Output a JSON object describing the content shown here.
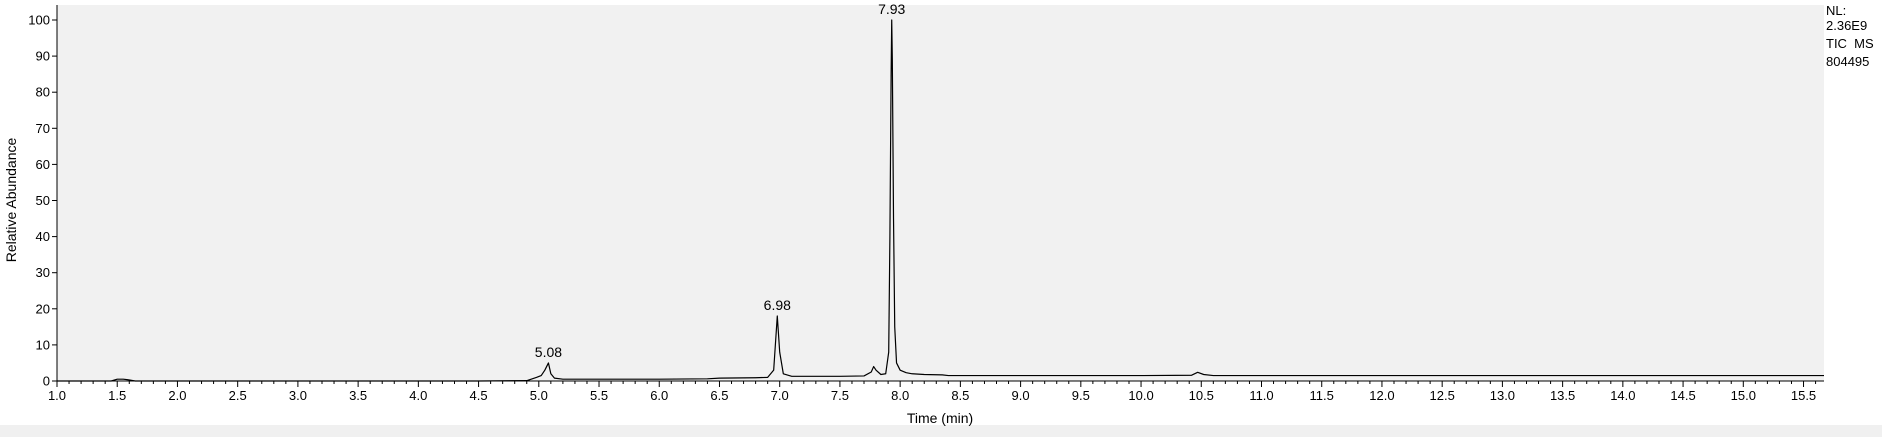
{
  "chart_data": {
    "type": "line",
    "title": "",
    "xlabel": "Time (min)",
    "ylabel": "Relative Abundance",
    "xlim": [
      1.0,
      15.67
    ],
    "ylim": [
      0,
      100
    ],
    "x_ticks": [
      "1.0",
      "1.5",
      "2.0",
      "2.5",
      "3.0",
      "3.5",
      "4.0",
      "4.5",
      "5.0",
      "5.5",
      "6.0",
      "6.5",
      "7.0",
      "7.5",
      "8.0",
      "8.5",
      "9.0",
      "9.5",
      "10.0",
      "10.5",
      "11.0",
      "11.5",
      "12.0",
      "12.5",
      "13.0",
      "13.5",
      "14.0",
      "14.5",
      "15.0",
      "15.5"
    ],
    "y_ticks": [
      "0",
      "10",
      "20",
      "30",
      "40",
      "50",
      "60",
      "70",
      "80",
      "90",
      "100"
    ],
    "grid": false,
    "legend": "none",
    "annotation_lines": [
      "NL:",
      "2.36E9",
      "TIC  MS",
      "804495"
    ],
    "peak_labels": [
      {
        "x": 5.08,
        "y": 5,
        "label": "5.08"
      },
      {
        "x": 6.98,
        "y": 18,
        "label": "6.98"
      },
      {
        "x": 7.93,
        "y": 100,
        "label": "7.93"
      }
    ],
    "series": [
      {
        "color": "#000000",
        "x": [
          1.0,
          1.45,
          1.5,
          1.55,
          1.6,
          1.65,
          2.0,
          3.0,
          4.0,
          4.5,
          4.9,
          4.98,
          5.02,
          5.05,
          5.08,
          5.1,
          5.13,
          5.2,
          5.5,
          6.0,
          6.4,
          6.5,
          6.8,
          6.9,
          6.95,
          6.98,
          7.0,
          7.03,
          7.1,
          7.3,
          7.5,
          7.7,
          7.76,
          7.78,
          7.8,
          7.84,
          7.88,
          7.905,
          7.915,
          7.925,
          7.93,
          7.935,
          7.945,
          7.955,
          7.97,
          8.0,
          8.05,
          8.1,
          8.2,
          8.35,
          8.4,
          9.0,
          10.0,
          10.42,
          10.47,
          10.52,
          10.6,
          11.0,
          12.0,
          13.0,
          14.0,
          15.0,
          15.67
        ],
        "y": [
          0,
          0,
          0.5,
          0.5,
          0.3,
          0,
          0,
          0,
          0,
          0,
          0.1,
          1,
          1.5,
          3,
          5,
          2,
          0.8,
          0.5,
          0.5,
          0.5,
          0.6,
          0.8,
          0.9,
          1.0,
          3,
          18,
          8,
          2,
          1.3,
          1.3,
          1.3,
          1.4,
          2.5,
          4,
          3,
          1.8,
          2,
          8,
          40,
          85,
          100,
          89,
          45,
          15,
          5,
          3,
          2.3,
          2,
          1.8,
          1.7,
          1.5,
          1.5,
          1.5,
          1.6,
          2.4,
          1.8,
          1.5,
          1.5,
          1.5,
          1.5,
          1.5,
          1.5,
          1.5
        ]
      }
    ]
  }
}
